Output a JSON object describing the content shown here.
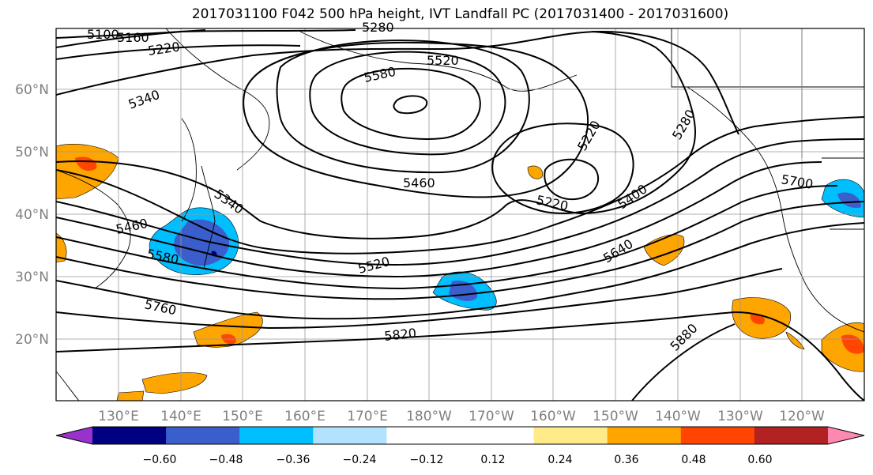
{
  "title": "2017031100 F042 500 hPa height, IVT Landfall PC (2017031400 - 2017031600)",
  "map": {
    "lon_labels": [
      "130°E",
      "140°E",
      "150°E",
      "160°E",
      "170°E",
      "180°W",
      "170°W",
      "160°W",
      "150°W",
      "140°W",
      "130°W",
      "120°W"
    ],
    "lat_labels": [
      "60°N",
      "50°N",
      "40°N",
      "30°N",
      "20°N"
    ],
    "contour_labels": [
      "5100",
      "5160",
      "5220",
      "5280",
      "5520",
      "5580",
      "5340",
      "5460",
      "5220",
      "5280",
      "5340",
      "5460",
      "5580",
      "5520",
      "5220",
      "5400",
      "5700",
      "5640",
      "5760",
      "5820",
      "5880"
    ]
  },
  "colorbar": {
    "colors": [
      "#9932CC",
      "#000080",
      "#3A5FCD",
      "#00BFFF",
      "#B2E2FF",
      "#FFFFFF",
      "#FFFFFF",
      "#FFEB8A",
      "#FFA500",
      "#FF4500",
      "#B22222",
      "#FF88B0"
    ],
    "tick_labels": [
      "−0.60",
      "−0.48",
      "−0.36",
      "−0.24",
      "−0.12",
      "0.12",
      "0.24",
      "0.36",
      "0.48",
      "0.60"
    ]
  },
  "legend_colors": {
    "dark_blue": "#3A5FCD",
    "light_blue": "#00BFFF",
    "orange": "#FFA500",
    "red": "#FF4500",
    "yellow": "#FFEB8A"
  }
}
